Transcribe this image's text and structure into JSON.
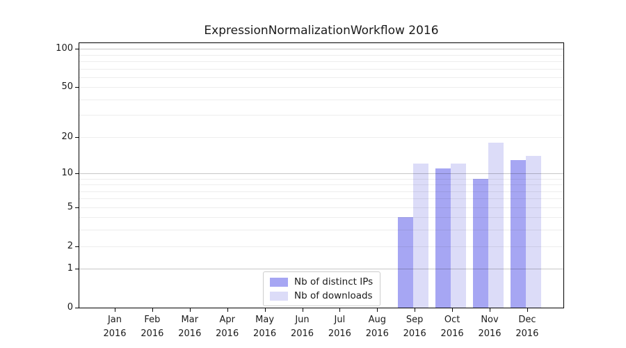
{
  "title": "ExpressionNormalizationWorkflow 2016",
  "chart_data": {
    "type": "bar",
    "title": "ExpressionNormalizationWorkflow 2016",
    "categories": [
      "Jan",
      "Feb",
      "Mar",
      "Apr",
      "May",
      "Jun",
      "Jul",
      "Aug",
      "Sep",
      "Oct",
      "Nov",
      "Dec"
    ],
    "year_label": "2016",
    "series": [
      {
        "name": "Nb of distinct IPs",
        "color": "#a6a6f3",
        "values": [
          0,
          0,
          0,
          0,
          0,
          0,
          0,
          0,
          4,
          11,
          9,
          13
        ]
      },
      {
        "name": "Nb of downloads",
        "color": "#dcdcf8",
        "values": [
          0,
          0,
          0,
          0,
          0,
          0,
          0,
          0,
          12,
          12,
          18,
          14
        ]
      }
    ],
    "y_scale": "log10(value+1)",
    "y_ticks": [
      0,
      1,
      2,
      5,
      10,
      20,
      50,
      100
    ],
    "y_major_gridline_values": [
      1,
      10,
      100
    ],
    "ylim": [
      0,
      111
    ],
    "grid": "on",
    "legend_position": "lower-center",
    "colors": {
      "major_grid": "rgba(0,0,0,0.22)",
      "minor_grid": "rgba(0,0,0,0.07)",
      "axis": "#000000",
      "text": "#1a1a1a",
      "background": "#ffffff"
    }
  }
}
